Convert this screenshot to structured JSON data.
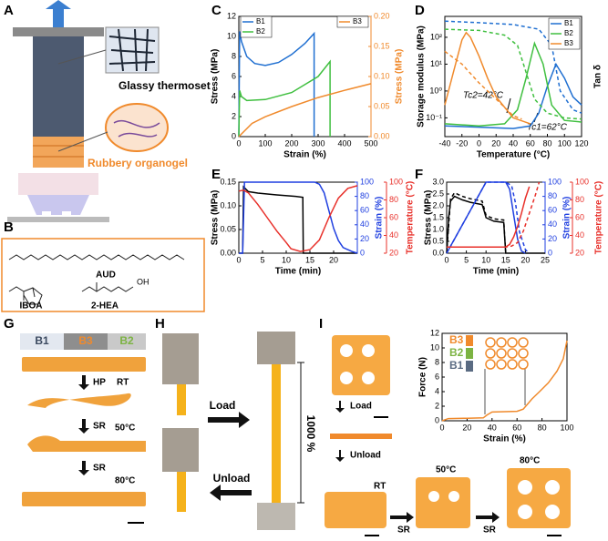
{
  "panel_letters": [
    "A",
    "B",
    "C",
    "D",
    "E",
    "F",
    "G",
    "H",
    "I"
  ],
  "panel_a": {
    "labels": [
      "Glassy thermoset",
      "Rubbery organogel"
    ]
  },
  "panel_b": {
    "molecules": [
      "AUD",
      "IBOA",
      "2-HEA"
    ],
    "atoms": [
      "OH"
    ]
  },
  "panel_g": {
    "header": [
      "B1",
      "B3",
      "B2"
    ],
    "labels": [
      "HP",
      "RT",
      "SR",
      "50°C",
      "SR",
      "80°C"
    ]
  },
  "panel_h": {
    "labels": [
      "Load",
      "1000 %",
      "Unload"
    ]
  },
  "panel_i": {
    "labels": [
      "Load",
      "Unload",
      "RT",
      "50°C",
      "80°C",
      "SR",
      "SR"
    ]
  },
  "chart_data": [
    {
      "type": "line",
      "xlabel": "Strain (%)",
      "ylabel": "Stress (MPa)",
      "y2label": "Stress (MPa)",
      "y2_color": "#f08a2c",
      "xlim": [
        0,
        500
      ],
      "xticks": [
        0,
        100,
        200,
        300,
        400,
        500
      ],
      "ylim": [
        0,
        12
      ],
      "yticks": [
        0,
        2,
        4,
        6,
        8,
        10,
        12
      ],
      "y2lim": [
        0,
        0.2
      ],
      "y2ticks": [
        {
          "value": 0,
          "label": "0.00"
        },
        {
          "value": 0.05,
          "label": "0.05"
        },
        {
          "value": 0.1,
          "label": "0.10"
        },
        {
          "value": 0.15,
          "label": "0.15"
        },
        {
          "value": 0.2,
          "label": "0.20"
        }
      ],
      "series": [
        {
          "name": "B1",
          "color": "#1f6fd1",
          "x": [
            0,
            3,
            10,
            30,
            60,
            100,
            150,
            200,
            250,
            285,
            285
          ],
          "values": [
            0,
            10.5,
            9.5,
            8,
            7.3,
            7.1,
            7.4,
            8.2,
            9.3,
            10.3,
            0
          ]
        },
        {
          "name": "B2",
          "color": "#3fbf3f",
          "x": [
            0,
            3,
            10,
            30,
            100,
            200,
            300,
            345,
            345
          ],
          "values": [
            0,
            4.6,
            4.0,
            3.6,
            3.7,
            4.4,
            6,
            7.5,
            0
          ]
        },
        {
          "name": "B3",
          "color": "#f08a2c",
          "axis": "y2",
          "x": [
            0,
            50,
            100,
            200,
            300,
            400,
            500
          ],
          "values": [
            0,
            0.022,
            0.033,
            0.05,
            0.065,
            0.077,
            0.088
          ]
        }
      ]
    },
    {
      "type": "line",
      "xlabel": "Temperature (°C)",
      "ylabel": "Storage modulus (MPa)",
      "y2label": "Tan δ",
      "log_y": true,
      "xlim": [
        -40,
        120
      ],
      "xticks": [
        -40,
        -20,
        0,
        20,
        40,
        60,
        80,
        100,
        120
      ],
      "ylim": [
        0.02,
        600
      ],
      "yticks": [
        {
          "value": 0.1,
          "label": "10⁻¹"
        },
        {
          "value": 1,
          "label": "10⁰"
        },
        {
          "value": 10,
          "label": "10¹"
        },
        {
          "value": 100,
          "label": "10²"
        }
      ],
      "annotations": [
        "Tc2=42°C",
        "Tc1=62°C"
      ],
      "series": [
        {
          "name": "B1",
          "color": "#1f6fd1",
          "x": [
            -40,
            0,
            40,
            60,
            70,
            80,
            90,
            100,
            110,
            120
          ],
          "values": [
            0.05,
            0.045,
            0.04,
            0.05,
            0.15,
            1.5,
            10,
            3,
            0.6,
            0.3
          ]
        },
        {
          "name": "B2",
          "color": "#3fbf3f",
          "x": [
            -40,
            0,
            30,
            45,
            55,
            65,
            75,
            85,
            100,
            120
          ],
          "values": [
            0.06,
            0.05,
            0.06,
            0.2,
            3,
            60,
            10,
            0.3,
            0.08,
            0.07
          ]
        },
        {
          "name": "B3",
          "color": "#f08a2c",
          "x": [
            -40,
            -30,
            -20,
            -15,
            -10,
            0,
            10,
            20,
            40,
            60
          ],
          "values": [
            0.3,
            5,
            80,
            150,
            100,
            20,
            3,
            0.6,
            0.1,
            0.06
          ]
        },
        {
          "color": "#1f6fd1",
          "dashed": true,
          "x": [
            -40,
            0,
            40,
            70,
            85,
            95,
            110,
            120
          ],
          "values": [
            400,
            350,
            300,
            200,
            50,
            1,
            0.2,
            0.15
          ]
        },
        {
          "color": "#3fbf3f",
          "dashed": true,
          "x": [
            -40,
            0,
            30,
            45,
            55,
            65,
            80,
            100,
            120
          ],
          "values": [
            200,
            180,
            120,
            50,
            5,
            0.5,
            0.15,
            0.1,
            0.09
          ]
        },
        {
          "color": "#f08a2c",
          "dashed": true,
          "x": [
            -40,
            -20,
            0,
            20,
            40,
            50
          ],
          "values": [
            30,
            10,
            2,
            0.5,
            0.12,
            0.09
          ]
        }
      ]
    },
    {
      "type": "line",
      "xlabel": "Time (min)",
      "ylabel": "Stress (MPa)",
      "y2label": "Strain (%)",
      "y3label": "Temperature (°C)",
      "y2_color": "#1f3fe0",
      "y3_color": "#e8302a",
      "xlim": [
        0,
        25
      ],
      "xticks": [
        0,
        5,
        10,
        15,
        20
      ],
      "ylim": [
        0,
        0.15
      ],
      "yticks": [
        {
          "value": 0,
          "label": "0.00"
        },
        {
          "value": 0.05,
          "label": "0.05"
        },
        {
          "value": 0.1,
          "label": "0.10"
        },
        {
          "value": 0.15,
          "label": "0.15"
        }
      ],
      "y2lim": [
        0,
        100
      ],
      "y2ticks": [
        0,
        20,
        40,
        60,
        80,
        100
      ],
      "y3lim": [
        20,
        100
      ],
      "y3ticks": [
        20,
        40,
        60,
        80,
        100
      ],
      "series": [
        {
          "color": "#000000",
          "x": [
            0,
            0.8,
            1,
            2,
            4,
            8,
            12,
            13.5,
            13.6,
            25
          ],
          "values": [
            0,
            0,
            0.14,
            0.13,
            0.127,
            0.123,
            0.12,
            0.118,
            0,
            0
          ]
        },
        {
          "color": "#1f3fe0",
          "axis": "y2",
          "x": [
            0,
            0.8,
            1.2,
            16,
            17,
            18,
            19,
            20,
            21,
            22,
            24,
            25
          ],
          "values": [
            0,
            0,
            100,
            100,
            97,
            85,
            60,
            35,
            18,
            8,
            2,
            0
          ]
        },
        {
          "color": "#e8302a",
          "axis": "y3",
          "x": [
            0,
            1,
            2,
            4,
            6,
            8,
            10,
            11,
            13,
            15,
            17,
            19,
            21,
            23,
            25
          ],
          "values": [
            90,
            91,
            88,
            75,
            60,
            45,
            32,
            25,
            22,
            24,
            35,
            60,
            82,
            93,
            96
          ]
        }
      ]
    },
    {
      "type": "line",
      "xlabel": "Time (min)",
      "ylabel": "Stress (MPa)",
      "y2label": "Strain (%)",
      "y3label": "Temperature (°C)",
      "y2_color": "#1f3fe0",
      "y3_color": "#e8302a",
      "xlim": [
        0,
        25
      ],
      "xticks": [
        0,
        5,
        10,
        15,
        20,
        25
      ],
      "ylim": [
        0,
        3
      ],
      "yticks": [
        {
          "value": 0,
          "label": "0.0"
        },
        {
          "value": 0.5,
          "label": "0.5"
        },
        {
          "value": 1,
          "label": "1.0"
        },
        {
          "value": 1.5,
          "label": "1.5"
        },
        {
          "value": 2,
          "label": "2.0"
        },
        {
          "value": 2.5,
          "label": "2.5"
        },
        {
          "value": 3,
          "label": "3.0"
        }
      ],
      "y2lim": [
        0,
        100
      ],
      "y2ticks": [
        0,
        20,
        40,
        60,
        80,
        100
      ],
      "y3lim": [
        20,
        100
      ],
      "y3ticks": [
        20,
        40,
        60,
        80,
        100
      ],
      "series": [
        {
          "color": "#000000",
          "x": [
            0,
            0.5,
            1,
            2,
            4,
            6,
            9,
            9.5,
            10,
            12,
            14.5,
            15,
            25
          ],
          "values": [
            0,
            1.5,
            2.2,
            2.4,
            2.25,
            2.15,
            2.05,
            1.8,
            1.5,
            1.35,
            1.3,
            0,
            0
          ]
        },
        {
          "color": "#000000",
          "dashed": true,
          "x": [
            0,
            1,
            2,
            4,
            6,
            9,
            10,
            12,
            14.5,
            15
          ],
          "values": [
            0,
            2.3,
            2.55,
            2.4,
            2.3,
            2.2,
            1.6,
            1.45,
            1.4,
            0
          ]
        },
        {
          "color": "#1f3fe0",
          "axis": "y2",
          "x": [
            0,
            10,
            15,
            16,
            17,
            18,
            19,
            20
          ],
          "values": [
            0,
            100,
            100,
            90,
            55,
            20,
            3,
            0
          ]
        },
        {
          "color": "#1f3fe0",
          "axis": "y2",
          "dashed": true,
          "x": [
            0,
            10,
            15,
            16.5,
            17.5,
            18.5,
            20,
            21
          ],
          "values": [
            0,
            100,
            100,
            95,
            70,
            30,
            5,
            0
          ]
        },
        {
          "color": "#e8302a",
          "axis": "y3",
          "x": [
            0,
            15,
            16,
            17,
            18,
            19,
            20,
            21
          ],
          "values": [
            27,
            27,
            30,
            38,
            50,
            65,
            82,
            95
          ]
        },
        {
          "color": "#e8302a",
          "axis": "y3",
          "dashed": true,
          "x": [
            0,
            15,
            16.5,
            18,
            19.5,
            21,
            22.5,
            23.5
          ],
          "values": [
            27,
            27,
            28,
            32,
            45,
            65,
            85,
            100
          ]
        }
      ]
    },
    {
      "type": "line",
      "xlabel": "Strain (%)",
      "ylabel": "Force (N)",
      "xlim": [
        0,
        100
      ],
      "xticks": [
        0,
        20,
        40,
        60,
        80,
        100
      ],
      "ylim": [
        0,
        12
      ],
      "yticks": [
        0,
        2,
        4,
        6,
        8,
        10,
        12
      ],
      "inset_labels": [
        {
          "text": "B3",
          "color": "#f08a2c"
        },
        {
          "text": "B2",
          "color": "#7cb342"
        },
        {
          "text": "B1",
          "color": "#5a6b82"
        }
      ],
      "series": [
        {
          "color": "#f08a2c",
          "x": [
            0,
            5,
            20,
            33,
            36,
            40,
            50,
            60,
            65,
            68,
            72,
            78,
            85,
            92,
            97,
            100
          ],
          "values": [
            0,
            0.3,
            0.35,
            0.4,
            0.8,
            1.2,
            1.25,
            1.3,
            1.6,
            2.2,
            3,
            4,
            5.2,
            6.8,
            8.5,
            11
          ]
        }
      ]
    }
  ]
}
